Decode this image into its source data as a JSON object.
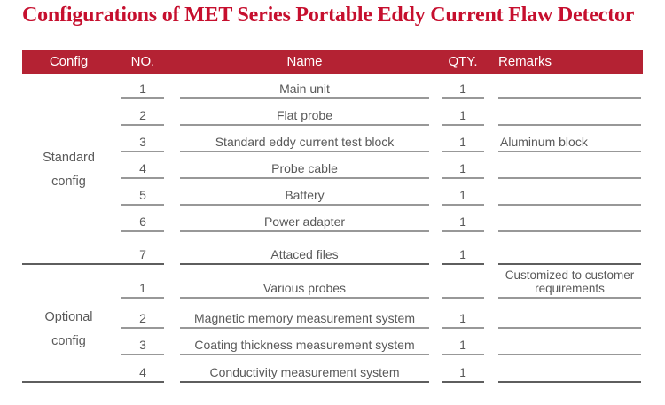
{
  "title": "Configurations of MET Series Portable Eddy Current Flaw Detector",
  "colors": {
    "title_red": "#C60F2E",
    "header_bg": "#B42233",
    "header_text": "#FFFFFF",
    "body_text": "#595959",
    "row_line": "#989898",
    "divider_line": "#5E5E5E"
  },
  "header": {
    "config": "Config",
    "no": "NO.",
    "name": "Name",
    "qty": "QTY.",
    "remarks": "Remarks"
  },
  "sections": [
    {
      "label_line1": "Standard",
      "label_line2": "config",
      "rows": [
        {
          "no": "1",
          "name": "Main unit",
          "qty": "1",
          "remarks": ""
        },
        {
          "no": "2",
          "name": "Flat probe",
          "qty": "1",
          "remarks": ""
        },
        {
          "no": "3",
          "name": "Standard eddy current test block",
          "qty": "1",
          "remarks": "Aluminum block"
        },
        {
          "no": "4",
          "name": "Probe cable",
          "qty": "1",
          "remarks": ""
        },
        {
          "no": "5",
          "name": "Battery",
          "qty": "1",
          "remarks": ""
        },
        {
          "no": "6",
          "name": "Power adapter",
          "qty": "1",
          "remarks": ""
        },
        {
          "no": "7",
          "name": "Attaced files",
          "qty": "1",
          "remarks": ""
        }
      ]
    },
    {
      "label_line1": "Optional",
      "label_line2": "config",
      "rows": [
        {
          "no": "1",
          "name": "Various probes",
          "qty": "",
          "remarks": "Customized to customer requirements"
        },
        {
          "no": "2",
          "name": "Magnetic memory measurement system",
          "qty": "1",
          "remarks": ""
        },
        {
          "no": "3",
          "name": "Coating thickness measurement system",
          "qty": "1",
          "remarks": ""
        },
        {
          "no": "4",
          "name": "Conductivity measurement system",
          "qty": "1",
          "remarks": ""
        }
      ]
    }
  ]
}
